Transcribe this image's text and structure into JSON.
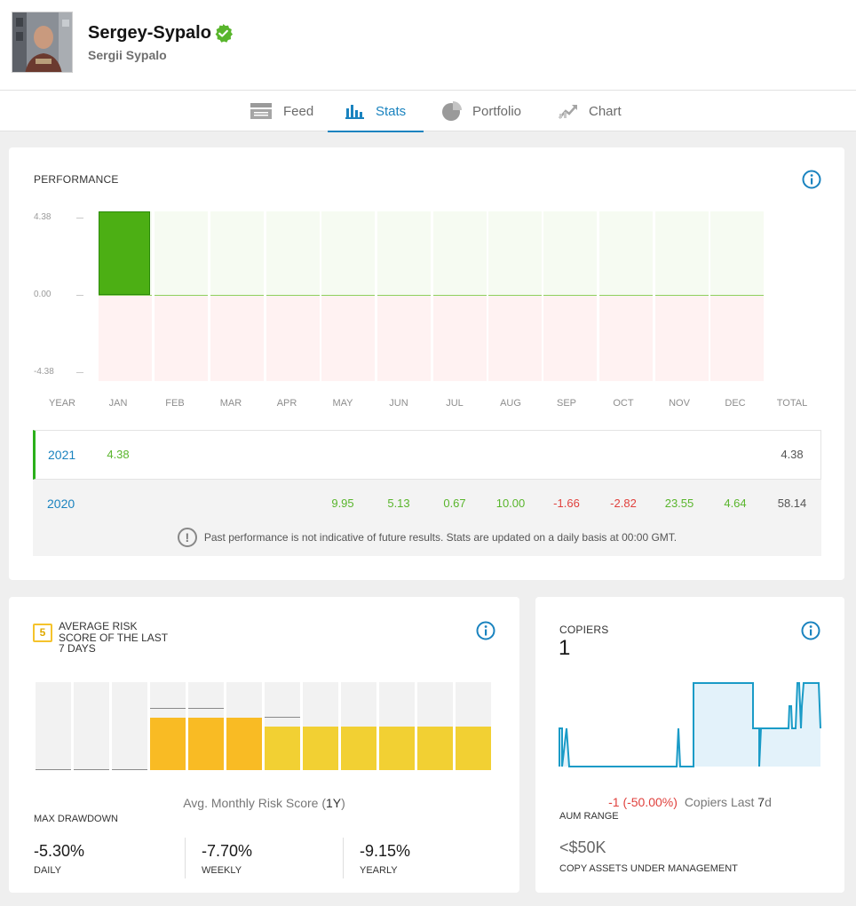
{
  "profile": {
    "username": "Sergey-Sypalo",
    "full_name": "Sergii Sypalo"
  },
  "tabs": [
    {
      "label": "Feed",
      "icon": "feed-icon",
      "active": false
    },
    {
      "label": "Stats",
      "icon": "stats-icon",
      "active": true
    },
    {
      "label": "Portfolio",
      "icon": "portfolio-pie-icon",
      "active": false
    },
    {
      "label": "Chart",
      "icon": "chart-trend-icon",
      "active": false
    }
  ],
  "performance": {
    "title": "PERFORMANCE",
    "y_labels": [
      "4.38",
      "0.00",
      "-4.38"
    ],
    "columns": [
      "YEAR",
      "JAN",
      "FEB",
      "MAR",
      "APR",
      "MAY",
      "JUN",
      "JUL",
      "AUG",
      "SEP",
      "OCT",
      "NOV",
      "DEC",
      "TOTAL"
    ],
    "rows": [
      {
        "year": "2021",
        "values": [
          "4.38",
          "",
          "",
          "",
          "",
          "",
          "",
          "",
          "",
          "",
          "",
          ""
        ],
        "total": "4.38"
      },
      {
        "year": "2020",
        "values": [
          "",
          "",
          "",
          "",
          "9.95",
          "5.13",
          "0.67",
          "10.00",
          "-1.66",
          "-2.82",
          "23.55",
          "4.64"
        ],
        "total": "58.14"
      }
    ],
    "disclaimer": "Past performance is not indicative of future results. Stats are updated on a daily basis at 00:00 GMT.",
    "colors": {
      "positive": "#59b52c",
      "negative": "#e0413d",
      "bar": "#4caf14"
    }
  },
  "chart_data": {
    "type": "bar",
    "title": "PERFORMANCE",
    "categories": [
      "JAN",
      "FEB",
      "MAR",
      "APR",
      "MAY",
      "JUN",
      "JUL",
      "AUG",
      "SEP",
      "OCT",
      "NOV",
      "DEC"
    ],
    "series": [
      {
        "name": "2021",
        "values": [
          4.38,
          0,
          0,
          0,
          0,
          0,
          0,
          0,
          0,
          0,
          0,
          0
        ]
      }
    ],
    "ylim": [
      -4.38,
      4.38
    ],
    "ytick_labels": [
      "4.38",
      "0.00",
      "-4.38"
    ]
  },
  "risk": {
    "score": "5",
    "title": "AVERAGE RISK SCORE OF THE LAST 7 DAYS",
    "monthly_label_pre": "Avg. Monthly Risk Score (",
    "monthly_label_bold": "1Y",
    "monthly_label_post": ")",
    "bar_scale_max": 10,
    "bars": [
      {
        "value": 0,
        "peak": 0
      },
      {
        "value": 0,
        "peak": 0
      },
      {
        "value": 0,
        "peak": 0
      },
      {
        "value": 6,
        "peak": 7,
        "color": "#f9bb24"
      },
      {
        "value": 6,
        "peak": 7,
        "color": "#f9bb24"
      },
      {
        "value": 6,
        "peak": 6,
        "color": "#f9bb24"
      },
      {
        "value": 5,
        "peak": 6,
        "color": "#f2d033"
      },
      {
        "value": 5,
        "peak": 5,
        "color": "#f2d033"
      },
      {
        "value": 5,
        "peak": 5,
        "color": "#f2d033"
      },
      {
        "value": 5,
        "peak": 5,
        "color": "#f2d033"
      },
      {
        "value": 5,
        "peak": 5,
        "color": "#f2d033"
      },
      {
        "value": 5,
        "peak": 5,
        "color": "#f2d033"
      }
    ],
    "max_drawdown_label": "MAX DRAWDOWN",
    "drawdowns": [
      {
        "value": "-5.30%",
        "label": "DAILY"
      },
      {
        "value": "-7.70%",
        "label": "WEEKLY"
      },
      {
        "value": "-9.15%",
        "label": "YEARLY"
      }
    ]
  },
  "copiers": {
    "title": "COPIERS",
    "count": "1",
    "change": "-1 (-50.00%)",
    "change_suffix_pre": "Copiers Last ",
    "change_suffix_bold": "7",
    "change_suffix_post": "d",
    "aum_range_label": "AUM RANGE",
    "aum_value": "<$50K",
    "aum_caption": "COPY ASSETS UNDER MANAGEMENT"
  }
}
